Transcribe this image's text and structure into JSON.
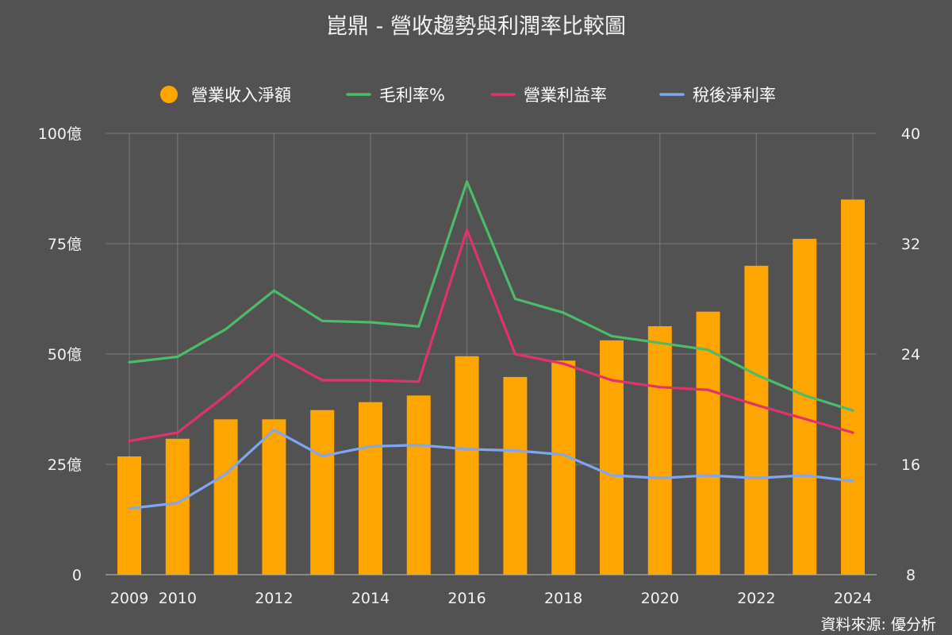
{
  "chart_data": {
    "type": "bar",
    "title": "崑鼎 - 營收趨勢與利潤率比較圖",
    "source": "資料來源: 優分析",
    "x": [
      2009,
      2010,
      2011,
      2012,
      2013,
      2014,
      2015,
      2016,
      2017,
      2018,
      2019,
      2020,
      2021,
      2022,
      2023,
      2024
    ],
    "x_tick_labels": [
      "2009",
      "2010",
      "2012",
      "2014",
      "2016",
      "2018",
      "2020",
      "2022",
      "2024"
    ],
    "left_axis": {
      "ylim": [
        0,
        100
      ],
      "ticks": [
        "0",
        "25億",
        "50億",
        "75億",
        "100億"
      ]
    },
    "right_axis": {
      "ylim": [
        8,
        40
      ],
      "ticks": [
        "8",
        "16",
        "24",
        "32",
        "40"
      ]
    },
    "grid": true,
    "legend_position": "top",
    "series": [
      {
        "name": "營業收入淨額",
        "type": "bar",
        "axis": "left",
        "color": "#FFA500",
        "values": [
          26.8,
          30.8,
          35.2,
          35.2,
          37.3,
          39.1,
          40.6,
          49.5,
          44.8,
          48.5,
          53.1,
          56.3,
          59.6,
          70.0,
          76.1,
          85.0
        ]
      },
      {
        "name": "毛利率%",
        "type": "line",
        "axis": "right",
        "color": "#4CBB6A",
        "values": [
          23.4,
          23.8,
          25.8,
          28.6,
          26.4,
          26.3,
          26.0,
          36.5,
          28.0,
          27.0,
          25.3,
          24.8,
          24.3,
          22.5,
          21.0,
          19.9
        ]
      },
      {
        "name": "營業利益率",
        "type": "line",
        "axis": "right",
        "color": "#E0336E",
        "values": [
          17.7,
          18.3,
          21.0,
          24.0,
          22.1,
          22.1,
          22.0,
          33.0,
          24.0,
          23.3,
          22.1,
          21.6,
          21.4,
          20.3,
          19.3,
          18.3
        ]
      },
      {
        "name": "稅後淨利率",
        "type": "line",
        "axis": "right",
        "color": "#7FA6F0",
        "values": [
          12.8,
          13.2,
          15.3,
          18.5,
          16.6,
          17.3,
          17.4,
          17.1,
          17.0,
          16.7,
          15.2,
          15.0,
          15.2,
          15.0,
          15.2,
          14.8
        ]
      }
    ]
  }
}
